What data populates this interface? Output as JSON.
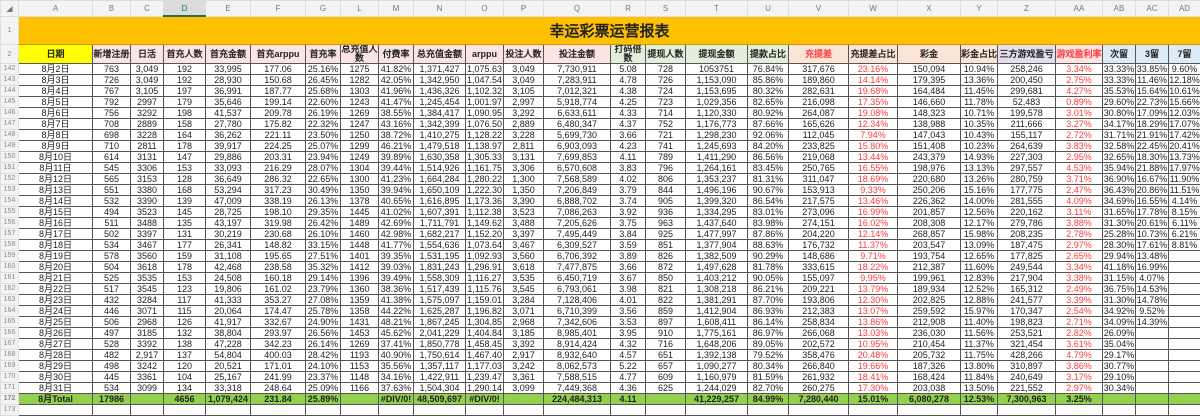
{
  "sheet": {
    "title": "幸运彩票运营报表",
    "column_letters": [
      "A",
      "B",
      "C",
      "D",
      "E",
      "F",
      "G",
      "L",
      "M",
      "N",
      "O",
      "P",
      "Q",
      "R",
      "S",
      "T",
      "U",
      "V",
      "W",
      "X",
      "Y",
      "Z",
      "AA",
      "AB",
      "AC",
      "AD"
    ],
    "selected_column": "D",
    "headers": [
      "日期",
      "新增注册",
      "日活",
      "首充人数",
      "首充金额",
      "首充arppu",
      "首充率",
      "总充值人数",
      "付费率",
      "总充值金额",
      "arppu",
      "投注人数",
      "投注金额",
      "打码倍数",
      "提现人数",
      "提现金额",
      "提款占比",
      "充提差",
      "充提差占比",
      "彩金",
      "彩金占比",
      "三方游戏盈亏",
      "游戏盈利率",
      "次留",
      "3留",
      "7留"
    ],
    "header_colors": {
      "date": "#ffff00",
      "recharge": "#fce4e4",
      "withdraw": "#e2efda",
      "diff": "#fce4d6",
      "game": "#e4dfec",
      "retention": "#ddebf7",
      "title": "#ffc000",
      "total": "#92d050",
      "negative_text": "#ff3b3b"
    },
    "row_numbers": [
      "1",
      "2",
      "142",
      "143",
      "144",
      "145",
      "146",
      "147",
      "148",
      "149",
      "150",
      "151",
      "152",
      "153",
      "154",
      "155",
      "156",
      "157",
      "158",
      "159",
      "160",
      "161",
      "162",
      "163",
      "164",
      "165",
      "166",
      "167",
      "168",
      "169",
      "170",
      "171",
      "172",
      "173"
    ],
    "rows": [
      [
        "8月2日",
        "763",
        "3,049",
        "192",
        "33,995",
        "177.06",
        "25.16%",
        "1275",
        "41.82%",
        "1,371,427",
        "1,075.63",
        "3,049",
        "7,730,911",
        "5.08",
        "728",
        "1053751",
        "76.84%",
        "317,676",
        "23.16%",
        "150,094",
        "10.94%",
        "258,246",
        "3.34%",
        "33.33%",
        "33.85%",
        "9.60%"
      ],
      [
        "8月3日",
        "726",
        "3,049",
        "192",
        "28,930",
        "150.68",
        "26.45%",
        "1282",
        "42.05%",
        "1,342,950",
        "1,047.54",
        "3,049",
        "7,283,911",
        "4.78",
        "726",
        "1,153,090",
        "85.86%",
        "189,860",
        "14.14%",
        "179,395",
        "13.36%",
        "200,450",
        "2.75%",
        "33.33%",
        "11.46%",
        "12.18%"
      ],
      [
        "8月4日",
        "767",
        "3,105",
        "197",
        "36,991",
        "187.77",
        "25.68%",
        "1303",
        "41.96%",
        "1,436,326",
        "1,102.32",
        "3,105",
        "7,012,321",
        "4.38",
        "724",
        "1,153,695",
        "80.32%",
        "282,631",
        "19.68%",
        "164,484",
        "11.45%",
        "299,681",
        "4.27%",
        "35.53%",
        "15.64%",
        "10.61%"
      ],
      [
        "8月5日",
        "792",
        "2997",
        "179",
        "35,646",
        "199.14",
        "22.60%",
        "1243",
        "41.47%",
        "1,245,454",
        "1,001.97",
        "2,997",
        "5,918,774",
        "4.25",
        "723",
        "1,029,356",
        "82.65%",
        "216,098",
        "17.35%",
        "146,660",
        "11.78%",
        "52,483",
        "0.89%",
        "29.60%",
        "22.73%",
        "15.66%"
      ],
      [
        "8月6日",
        "756",
        "3292",
        "198",
        "41,537",
        "209.78",
        "26.19%",
        "1269",
        "38.55%",
        "1,384,417",
        "1,090.95",
        "3,292",
        "6,633,611",
        "4.33",
        "714",
        "1,120,330",
        "80.92%",
        "264,087",
        "19.08%",
        "148,323",
        "10.71%",
        "199,578",
        "3.01%",
        "30.80%",
        "17.09%",
        "12.03%"
      ],
      [
        "8月7日",
        "708",
        "2889",
        "158",
        "27,780",
        "175.82",
        "22.32%",
        "1247",
        "43.16%",
        "1,342,399",
        "1,076.50",
        "2,889",
        "6,480,347",
        "4.37",
        "752",
        "1,176,773",
        "87.66%",
        "165,626",
        "12.34%",
        "138,988",
        "10.35%",
        "211,666",
        "3.27%",
        "34.17%",
        "18.29%",
        "17.07%"
      ],
      [
        "8月8日",
        "698",
        "3228",
        "164",
        "36,262",
        "221.11",
        "23.50%",
        "1250",
        "38.72%",
        "1,410,275",
        "1,128.22",
        "3,228",
        "5,699,730",
        "3.66",
        "721",
        "1,298,230",
        "92.06%",
        "112,045",
        "7.94%",
        "147,043",
        "10.43%",
        "155,117",
        "2.72%",
        "31.71%",
        "21.91%",
        "17.42%"
      ],
      [
        "8月9日",
        "710",
        "2811",
        "178",
        "39,917",
        "224.25",
        "25.07%",
        "1299",
        "46.21%",
        "1,479,518",
        "1,138.97",
        "2,811",
        "6,903,093",
        "4.23",
        "741",
        "1,245,693",
        "84.20%",
        "233,825",
        "15.80%",
        "151,408",
        "10.23%",
        "264,639",
        "3.83%",
        "32.58%",
        "22.45%",
        "20.41%"
      ],
      [
        "8月10日",
        "614",
        "3131",
        "147",
        "29,886",
        "203.31",
        "23.94%",
        "1249",
        "39.89%",
        "1,630,358",
        "1,305.33",
        "3,131",
        "7,699,853",
        "4.11",
        "789",
        "1,411,290",
        "86.56%",
        "219,068",
        "13.44%",
        "243,379",
        "14.93%",
        "227,303",
        "2.95%",
        "32.65%",
        "18.30%",
        "13.73%"
      ],
      [
        "8月11日",
        "545",
        "3306",
        "153",
        "33,093",
        "216.29",
        "28.07%",
        "1304",
        "39.44%",
        "1,514,926",
        "1,161.75",
        "3,306",
        "6,570,608",
        "3.83",
        "796",
        "1,264,161",
        "83.45%",
        "250,765",
        "16.55%",
        "198,976",
        "13.13%",
        "297,557",
        "4.53%",
        "35.94%",
        "21.88%",
        "17.97%"
      ],
      [
        "8月12日",
        "565",
        "3153",
        "128",
        "36,649",
        "286.32",
        "22.65%",
        "1300",
        "41.23%",
        "1,664,284",
        "1,280.22",
        "1,300",
        "7,568,589",
        "4.02",
        "806",
        "1,353,237",
        "81.31%",
        "311,047",
        "18.69%",
        "220,680",
        "13.26%",
        "280,759",
        "3.71%",
        "36.90%",
        "16.67%",
        "11.90%"
      ],
      [
        "8月13日",
        "551",
        "3380",
        "168",
        "53,294",
        "317.23",
        "30.49%",
        "1350",
        "39.94%",
        "1,650,109",
        "1,222.30",
        "1,350",
        "7,206,849",
        "3.79",
        "844",
        "1,496,196",
        "90.67%",
        "153,913",
        "9.33%",
        "250,206",
        "15.16%",
        "177,775",
        "2.47%",
        "36.43%",
        "20.86%",
        "11.51%"
      ],
      [
        "8月14日",
        "532",
        "3390",
        "139",
        "47,009",
        "338.19",
        "26.13%",
        "1378",
        "40.65%",
        "1,616,895",
        "1,173.36",
        "3,390",
        "6,888,702",
        "3.74",
        "905",
        "1,399,320",
        "86.54%",
        "217,575",
        "13.46%",
        "226,362",
        "14.00%",
        "281,555",
        "4.09%",
        "34.69%",
        "16.55%",
        "4.14%"
      ],
      [
        "8月15日",
        "494",
        "3523",
        "145",
        "28,725",
        "198.10",
        "29.35%",
        "1445",
        "41.02%",
        "1,607,391",
        "1,112.38",
        "3,523",
        "7,086,263",
        "3.92",
        "936",
        "1,334,295",
        "83.01%",
        "273,096",
        "16.99%",
        "201,857",
        "12.56%",
        "220,162",
        "3.11%",
        "31.65%",
        "17.78%",
        "8.15%"
      ],
      [
        "8月16日",
        "511",
        "3488",
        "135",
        "43,197",
        "319.98",
        "26.42%",
        "1489",
        "42.69%",
        "1,711,791",
        "1,149.62",
        "3,488",
        "7,205,626",
        "3.75",
        "963",
        "1,437,640",
        "83.98%",
        "274,151",
        "16.02%",
        "208,308",
        "12.17%",
        "279,786",
        "3.88%",
        "31.30%",
        "20.61%",
        "6.11%"
      ],
      [
        "8月17日",
        "502",
        "3397",
        "131",
        "30,219",
        "230.68",
        "26.10%",
        "1460",
        "42.98%",
        "1,682,217",
        "1,152.20",
        "3,397",
        "7,495,449",
        "3.84",
        "925",
        "1,477,997",
        "87.86%",
        "204,220",
        "12.14%",
        "268,857",
        "15.98%",
        "208,235",
        "2.78%",
        "25.28%",
        "10.73%",
        "6.21%"
      ],
      [
        "8月18日",
        "534",
        "3467",
        "177",
        "26,341",
        "148.82",
        "33.15%",
        "1448",
        "41.77%",
        "1,554,636",
        "1,073.64",
        "3,467",
        "6,309,527",
        "3.59",
        "851",
        "1,377,904",
        "88.63%",
        "176,732",
        "11.37%",
        "203,547",
        "13.09%",
        "187,475",
        "2.97%",
        "28.30%",
        "17.61%",
        "8.81%"
      ],
      [
        "8月19日",
        "578",
        "3560",
        "159",
        "31,108",
        "195.65",
        "27.51%",
        "1401",
        "39.35%",
        "1,531,195",
        "1,092.93",
        "3,560",
        "6,706,392",
        "3.89",
        "826",
        "1,382,509",
        "90.29%",
        "148,686",
        "9.71%",
        "193,754",
        "12.65%",
        "177,825",
        "2.65%",
        "29.94%",
        "13.48%",
        ""
      ],
      [
        "8月20日",
        "504",
        "3618",
        "178",
        "42,468",
        "238.58",
        "35.32%",
        "1412",
        "39.03%",
        "1,831,243",
        "1,296.91",
        "3,618",
        "7,477,875",
        "3.66",
        "872",
        "1,497,628",
        "81.78%",
        "333,615",
        "18.22%",
        "212,387",
        "11.60%",
        "249,544",
        "3.34%",
        "41.18%",
        "16.99%",
        ""
      ],
      [
        "8月21日",
        "525",
        "3535",
        "153",
        "24,508",
        "160.18",
        "29.14%",
        "1396",
        "39.49%",
        "1,558,309",
        "1,116.27",
        "3,535",
        "6,450,719",
        "3.67",
        "850",
        "1,403,212",
        "90.05%",
        "155,097",
        "9.95%",
        "199,961",
        "12.83%",
        "217,904",
        "3.38%",
        "31.15%",
        "4.07%",
        ""
      ],
      [
        "8月22日",
        "517",
        "3545",
        "123",
        "19,806",
        "161.02",
        "23.79%",
        "1360",
        "38.36%",
        "1,517,439",
        "1,115.76",
        "3,545",
        "6,793,061",
        "3.98",
        "821",
        "1,308,218",
        "86.21%",
        "209,221",
        "13.79%",
        "189,934",
        "12.52%",
        "165,312",
        "2.49%",
        "36.75%",
        "14.53%",
        ""
      ],
      [
        "8月23日",
        "432",
        "3284",
        "117",
        "41,333",
        "353.27",
        "27.08%",
        "1359",
        "41.38%",
        "1,575,097",
        "1,159.01",
        "3,284",
        "7,128,406",
        "4.01",
        "822",
        "1,381,291",
        "87.70%",
        "193,806",
        "12.30%",
        "202,825",
        "12.88%",
        "241,577",
        "3.39%",
        "31.30%",
        "14.78%",
        ""
      ],
      [
        "8月24日",
        "446",
        "3071",
        "115",
        "20,064",
        "174.47",
        "25.78%",
        "1358",
        "44.22%",
        "1,625,287",
        "1,196.82",
        "3,071",
        "6,710,399",
        "3.56",
        "859",
        "1,412,904",
        "86.93%",
        "212,383",
        "13.07%",
        "259,592",
        "15.97%",
        "170,347",
        "2.54%",
        "34.92%",
        "9.52%",
        ""
      ],
      [
        "8月25日",
        "506",
        "2968",
        "126",
        "41,917",
        "332.67",
        "24.90%",
        "1431",
        "48.21%",
        "1,867,245",
        "1,304.85",
        "2,968",
        "7,342,606",
        "3.53",
        "897",
        "1,608,411",
        "86.14%",
        "258,834",
        "13.86%",
        "212,908",
        "11.40%",
        "198,823",
        "2.71%",
        "34.09%",
        "14.39%",
        ""
      ],
      [
        "8月26日",
        "497",
        "3185",
        "132",
        "38,804",
        "293.97",
        "26.56%",
        "1453",
        "45.62%",
        "2,041,229",
        "1,404.84",
        "3,185",
        "8,985,401",
        "3.95",
        "910",
        "1,775,161",
        "86.97%",
        "266,068",
        "13.03%",
        "236,030",
        "11.56%",
        "253,521",
        "2.82%",
        "26.09%",
        "",
        ""
      ],
      [
        "8月27日",
        "528",
        "3392",
        "138",
        "47,228",
        "342.23",
        "26.14%",
        "1269",
        "37.41%",
        "1,850,778",
        "1,458.45",
        "3,392",
        "8,914,424",
        "4.32",
        "716",
        "1,648,206",
        "89.05%",
        "202,572",
        "10.95%",
        "210,454",
        "11.37%",
        "321,454",
        "3.61%",
        "35.04%",
        "",
        ""
      ],
      [
        "8月28日",
        "482",
        "2,917",
        "137",
        "54,804",
        "400.03",
        "28.42%",
        "1193",
        "40.90%",
        "1,750,614",
        "1,467.40",
        "2,917",
        "8,932,640",
        "4.57",
        "651",
        "1,392,138",
        "79.52%",
        "358,476",
        "20.48%",
        "205,732",
        "11.75%",
        "428,266",
        "4.79%",
        "29.17%",
        "",
        ""
      ],
      [
        "8月29日",
        "498",
        "3242",
        "120",
        "20,521",
        "171.01",
        "24.10%",
        "1153",
        "35.56%",
        "1,357,117",
        "1,177.03",
        "3,242",
        "8,062,573",
        "5.22",
        "657",
        "1,090,277",
        "80.34%",
        "266,840",
        "19.66%",
        "187,326",
        "13.80%",
        "310,897",
        "3.86%",
        "30.77%",
        "",
        ""
      ],
      [
        "8月30日",
        "445",
        "3361",
        "104",
        "25,167",
        "241.99",
        "23.37%",
        "1148",
        "34.16%",
        "1,422,911",
        "1,239.47",
        "3,361",
        "7,588,515",
        "4.77",
        "609",
        "1,160,979",
        "81.59%",
        "261,932",
        "18.41%",
        "168,424",
        "11.84%",
        "240,649",
        "3.17%",
        "29.10%",
        "",
        ""
      ],
      [
        "8月31日",
        "534",
        "3099",
        "134",
        "33,318",
        "248.64",
        "25.09%",
        "1166",
        "37.63%",
        "1,504,304",
        "1,290.14",
        "3,099",
        "7,449,368",
        "4.36",
        "625",
        "1,244,029",
        "82.70%",
        "260,275",
        "17.30%",
        "203,038",
        "13.50%",
        "221,552",
        "2.97%",
        "30.34%",
        "",
        ""
      ]
    ],
    "total_row": [
      "8月Total",
      "17986",
      "",
      "4656",
      "1,079,424",
      "231.84",
      "25.89%",
      "",
      "#DIV/0!",
      "48,509,697",
      "#DIV/0!",
      "",
      "224,484,313",
      "4.11",
      "",
      "41,229,257",
      "84.99%",
      "7,280,440",
      "15.01%",
      "6,080,278",
      "12.53%",
      "7,300,963",
      "3.25%",
      "",
      "",
      ""
    ]
  }
}
